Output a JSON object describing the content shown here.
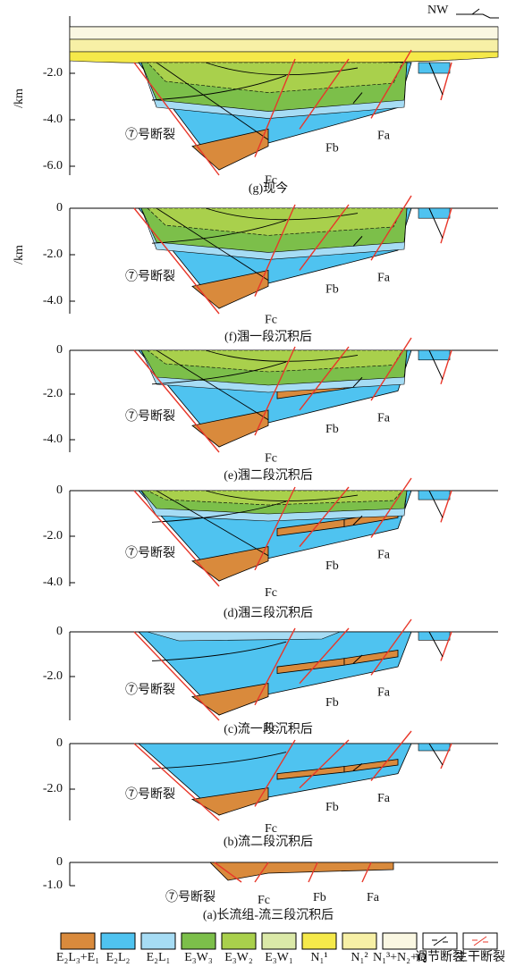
{
  "header": {
    "direction": "NW",
    "unit": "/km"
  },
  "panels": [
    {
      "caption": "(g)现今",
      "ticks": [
        "-2.0",
        "-4.0",
        "-6.0"
      ],
      "fault7": "⑦号断裂",
      "fc": "Fc",
      "fb": "Fb",
      "fa": "Fa"
    },
    {
      "caption": "(f)涠一段沉积后",
      "ticks": [
        "0",
        "-2.0",
        "-4.0"
      ],
      "fault7": "⑦号断裂",
      "fc": "Fc",
      "fb": "Fb",
      "fa": "Fa"
    },
    {
      "caption": "(e)涠二段沉积后",
      "ticks": [
        "0",
        "-2.0",
        "-4.0"
      ],
      "fault7": "⑦号断裂",
      "fc": "Fc",
      "fb": "Fb",
      "fa": "Fa"
    },
    {
      "caption": "(d)涠三段沉积后",
      "ticks": [
        "0",
        "-2.0",
        "-4.0"
      ],
      "fault7": "⑦号断裂",
      "fc": "Fc",
      "fb": "Fb",
      "fa": "Fa"
    },
    {
      "caption": "(c)流一段沉积后",
      "ticks": [
        "0",
        "-2.0"
      ],
      "fault7": "⑦号断裂",
      "fc": "Fc",
      "fb": "Fb",
      "fa": "Fa"
    },
    {
      "caption": "(b)流二段沉积后",
      "ticks": [
        "0",
        "-2.0"
      ],
      "fault7": "⑦号断裂",
      "fc": "Fc",
      "fb": "Fb",
      "fa": "Fa"
    },
    {
      "caption": "(a)长流组-流三段沉积后",
      "ticks": [
        "0",
        "-1.0"
      ],
      "fault7": "⑦号断裂",
      "fc": "Fc",
      "fb": "Fb",
      "fa": "Fa"
    }
  ],
  "legend": [
    "E₂L₃+E₁",
    "E₂L₂",
    "E₂L₁",
    "E₃W₃",
    "E₃W₂",
    "E₃W₁",
    "N₁¹",
    "N₁²",
    "N₁³+N₂+Q",
    "调节断裂",
    "主干断裂"
  ]
}
